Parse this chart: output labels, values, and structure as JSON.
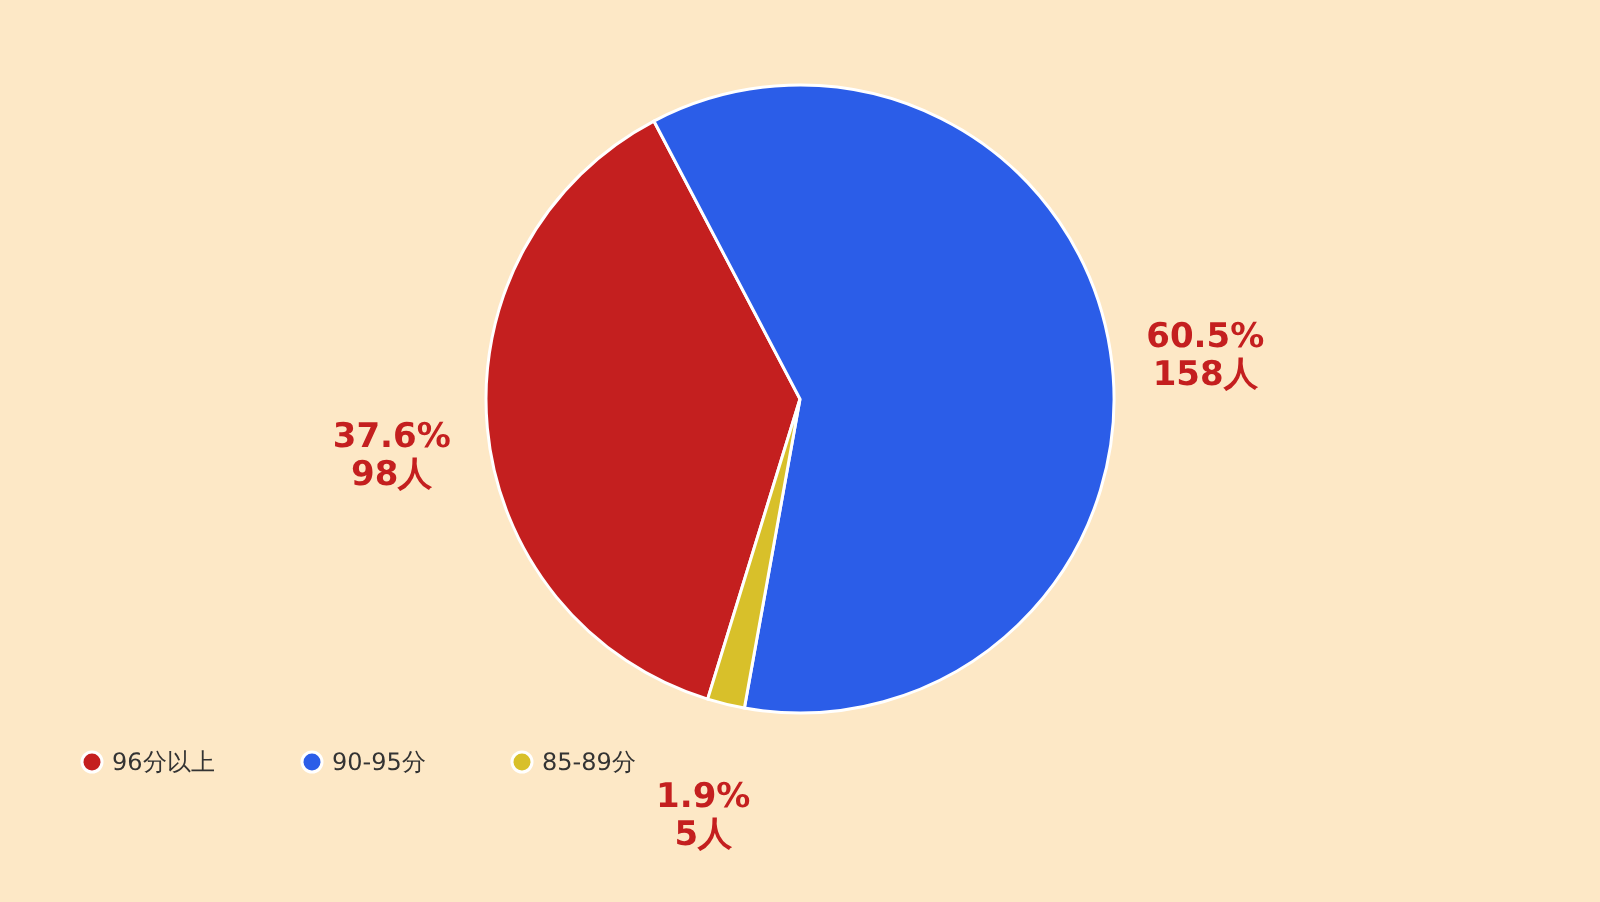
{
  "chart_data": {
    "type": "pie",
    "categories": [
      "96分以上",
      "90-95分",
      "85-89分"
    ],
    "values": [
      98,
      158,
      5
    ],
    "colors": [
      "#c41f1f",
      "#2b5de8",
      "#d8c02a"
    ],
    "value_labels": [
      "37.6%\n98人",
      "60.5%\n158人",
      "1.9%\n5人"
    ],
    "legend": "bottom left"
  }
}
